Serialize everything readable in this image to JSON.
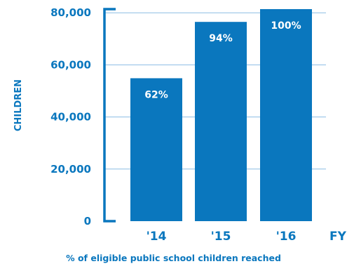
{
  "colors": {
    "bar": "#0a77be",
    "text": "#0a77be",
    "bar_label": "#ffffff",
    "grid": "#8bbde4",
    "axis": "#0a77be"
  },
  "chart_data": {
    "type": "bar",
    "categories": [
      "'14",
      "'15",
      "'16"
    ],
    "values": [
      54867,
      76500,
      81400
    ],
    "data_labels": [
      "62%",
      "94%",
      "100%"
    ],
    "ylabel": "CHILDREN",
    "xlabel": "FY",
    "y_ticks": [
      0,
      20000,
      40000,
      60000,
      80000
    ],
    "y_tick_labels": [
      "0",
      "20,000",
      "40,000",
      "60,000",
      "80,000"
    ],
    "ylim": [
      0,
      81400
    ],
    "grid": true,
    "caption": "% of eligible public school children reached"
  }
}
